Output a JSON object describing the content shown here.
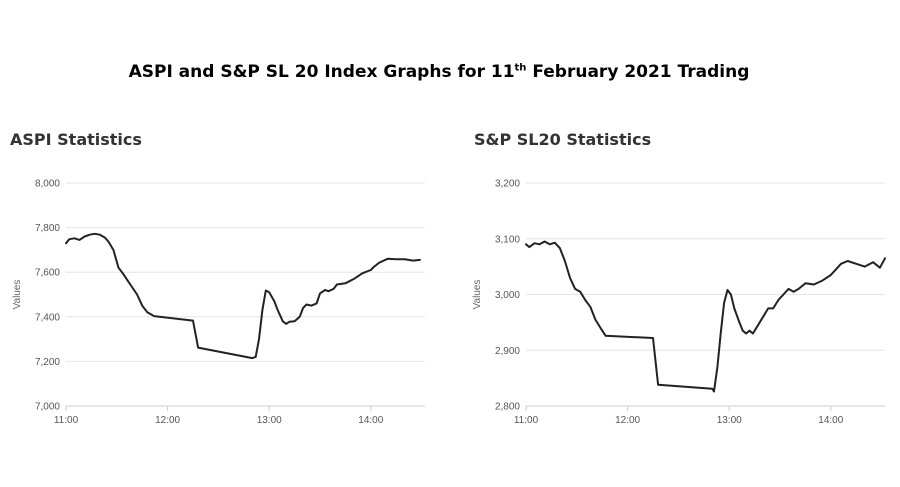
{
  "page": {
    "title_main": "ASPI and S&P SL 20 Index Graphs for 11",
    "title_sup": "th",
    "title_tail": " February 2021 Trading"
  },
  "colors": {
    "line": "#222222",
    "grid": "#e6e6e6",
    "axis": "#cccccc"
  },
  "chart_data": [
    {
      "type": "line",
      "title": "ASPI Statistics",
      "ylabel": "Values",
      "ylim": [
        7000,
        8000
      ],
      "yticks": [
        7000,
        7200,
        7400,
        7600,
        7800,
        8000
      ],
      "ytick_labels": [
        "7,000",
        "7,200",
        "7,400",
        "7,600",
        "7,800",
        "8,000"
      ],
      "xlim": [
        "11:00",
        "14:32"
      ],
      "xticks": [
        "11:00",
        "12:00",
        "13:00",
        "14:00"
      ],
      "series": [
        {
          "x": [
            "11:00",
            "11:02",
            "11:05",
            "11:08",
            "11:11",
            "11:14",
            "11:17",
            "11:20",
            "11:23",
            "11:25",
            "11:28",
            "11:31",
            "11:34",
            "11:38",
            "11:42",
            "11:45",
            "11:48",
            "11:52",
            "12:15",
            "12:18",
            "12:50",
            "12:52",
            "12:54",
            "12:56",
            "12:58",
            "13:00",
            "13:03",
            "13:05",
            "13:08",
            "13:10",
            "13:12",
            "13:15",
            "13:18",
            "13:20",
            "13:22",
            "13:25",
            "13:28",
            "13:30",
            "13:33",
            "13:35",
            "13:38",
            "13:40",
            "13:45",
            "13:50",
            "13:55",
            "14:00",
            "14:02",
            "14:05",
            "14:10",
            "14:15",
            "14:20",
            "14:25",
            "14:29"
          ],
          "y": [
            7730,
            7748,
            7752,
            7745,
            7760,
            7768,
            7772,
            7768,
            7755,
            7738,
            7700,
            7620,
            7590,
            7545,
            7500,
            7450,
            7420,
            7403,
            7383,
            7262,
            7215,
            7220,
            7300,
            7430,
            7518,
            7510,
            7470,
            7430,
            7380,
            7368,
            7378,
            7380,
            7400,
            7440,
            7455,
            7450,
            7460,
            7505,
            7520,
            7515,
            7525,
            7545,
            7550,
            7570,
            7595,
            7610,
            7625,
            7643,
            7660,
            7658,
            7658,
            7652,
            7655
          ]
        }
      ]
    },
    {
      "type": "line",
      "title": "S&P SL20 Statistics",
      "ylabel": "Values",
      "ylim": [
        2800,
        3200
      ],
      "yticks": [
        2800,
        2900,
        3000,
        3100,
        3200
      ],
      "ytick_labels": [
        "2,800",
        "2,900",
        "3,000",
        "3,100",
        "3,200"
      ],
      "xlim": [
        "11:00",
        "14:32"
      ],
      "xticks": [
        "11:00",
        "12:00",
        "13:00",
        "14:00"
      ],
      "series": [
        {
          "x": [
            "11:00",
            "11:02",
            "11:05",
            "11:08",
            "11:11",
            "11:14",
            "11:17",
            "11:20",
            "11:23",
            "11:26",
            "11:29",
            "11:32",
            "11:35",
            "11:38",
            "11:41",
            "11:44",
            "11:47",
            "12:15",
            "12:18",
            "12:50",
            "12:51",
            "12:53",
            "12:55",
            "12:57",
            "12:59",
            "13:01",
            "13:03",
            "13:06",
            "13:08",
            "13:10",
            "13:12",
            "13:14",
            "13:17",
            "13:20",
            "13:23",
            "13:26",
            "13:29",
            "13:32",
            "13:35",
            "13:38",
            "13:41",
            "13:45",
            "13:50",
            "13:55",
            "14:00",
            "14:03",
            "14:06",
            "14:10",
            "14:15",
            "14:20",
            "14:25",
            "14:29",
            "14:32"
          ],
          "y": [
            3090,
            3085,
            3092,
            3090,
            3095,
            3090,
            3093,
            3083,
            3060,
            3030,
            3010,
            3005,
            2990,
            2978,
            2955,
            2940,
            2926,
            2922,
            2838,
            2831,
            2826,
            2870,
            2930,
            2985,
            3008,
            3000,
            2975,
            2950,
            2935,
            2930,
            2935,
            2930,
            2945,
            2960,
            2975,
            2975,
            2990,
            3000,
            3010,
            3005,
            3010,
            3020,
            3018,
            3025,
            3035,
            3045,
            3055,
            3060,
            3055,
            3050,
            3058,
            3048,
            3065
          ]
        }
      ]
    }
  ]
}
